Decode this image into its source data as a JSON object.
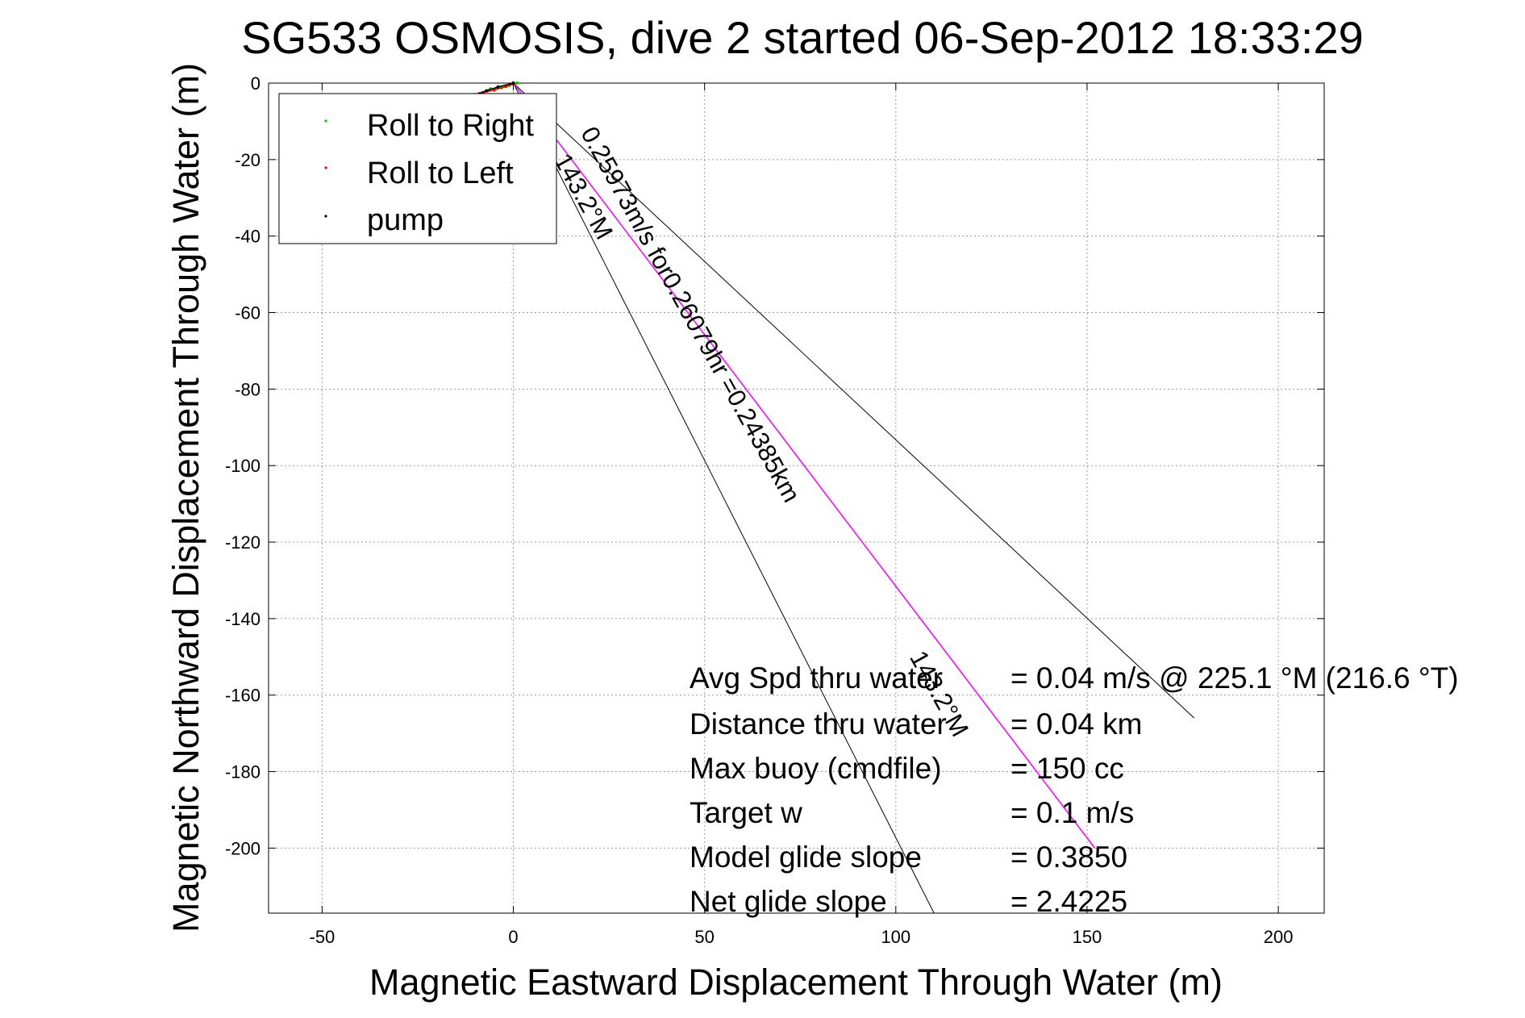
{
  "chart_data": {
    "type": "line",
    "title": "SG533 OSMOSIS, dive 2 started 06-Sep-2012 18:33:29",
    "xlabel": "Magnetic Eastward Displacement Through Water (m)",
    "ylabel": "Magnetic Northward Displacement Through Water (m)",
    "xlim": [
      -64,
      212
    ],
    "ylim": [
      -217,
      0
    ],
    "xticks": [
      -50,
      0,
      50,
      100,
      150,
      200
    ],
    "yticks": [
      0,
      -20,
      -40,
      -60,
      -80,
      -100,
      -120,
      -140,
      -160,
      -180,
      -200
    ],
    "grid": true,
    "legend_position": "top-left",
    "legend": [
      "Roll to Right",
      "Roll to Left",
      "pump"
    ],
    "series": [
      {
        "name": "Roll to Right",
        "color": "#00cc00",
        "x": [
          -8,
          -6,
          -3,
          -1,
          1
        ],
        "y": [
          -2.5,
          -1.5,
          -1.2,
          -0.6,
          0
        ]
      },
      {
        "name": "Roll to Left",
        "color": "#ff0000",
        "x": [
          -9,
          -5,
          -2,
          0
        ],
        "y": [
          -2.8,
          -1.8,
          -0.9,
          -0.2
        ]
      },
      {
        "name": "pump",
        "color": "#000000",
        "x": [
          -10,
          -7,
          -4,
          0
        ],
        "y": [
          -3.0,
          -2.0,
          -1.0,
          0
        ]
      }
    ],
    "lines": [
      {
        "role": "bearing-line-left",
        "color": "#000000",
        "x": [
          0,
          110
        ],
        "y": [
          0,
          -217
        ]
      },
      {
        "role": "bearing-line-right",
        "color": "#000000",
        "x": [
          0,
          178
        ],
        "y": [
          0,
          -166
        ]
      },
      {
        "role": "course-line",
        "color": "#ff00ff",
        "x": [
          0,
          152
        ],
        "y": [
          0,
          -200
        ]
      }
    ],
    "annotations": {
      "course_label": "0.25973m/s for0.26079hr =0.24385km",
      "heading_left": "143.2°M",
      "heading_right": "143.2°M"
    },
    "stats": [
      {
        "label": "Avg Spd thru water",
        "value": "=  0.04 m/s @ 225.1 °M (216.6 °T)"
      },
      {
        "label": "Distance thru water",
        "value": "=  0.04 km"
      },
      {
        "label": "Max buoy (cmdfile)",
        "value": "= 150 cc"
      },
      {
        "label": "Target w",
        "value": "= 0.1 m/s"
      },
      {
        "label": "Model glide slope",
        "value": "= 0.3850"
      },
      {
        "label": "Net glide slope",
        "value": "= 2.4225"
      }
    ]
  }
}
